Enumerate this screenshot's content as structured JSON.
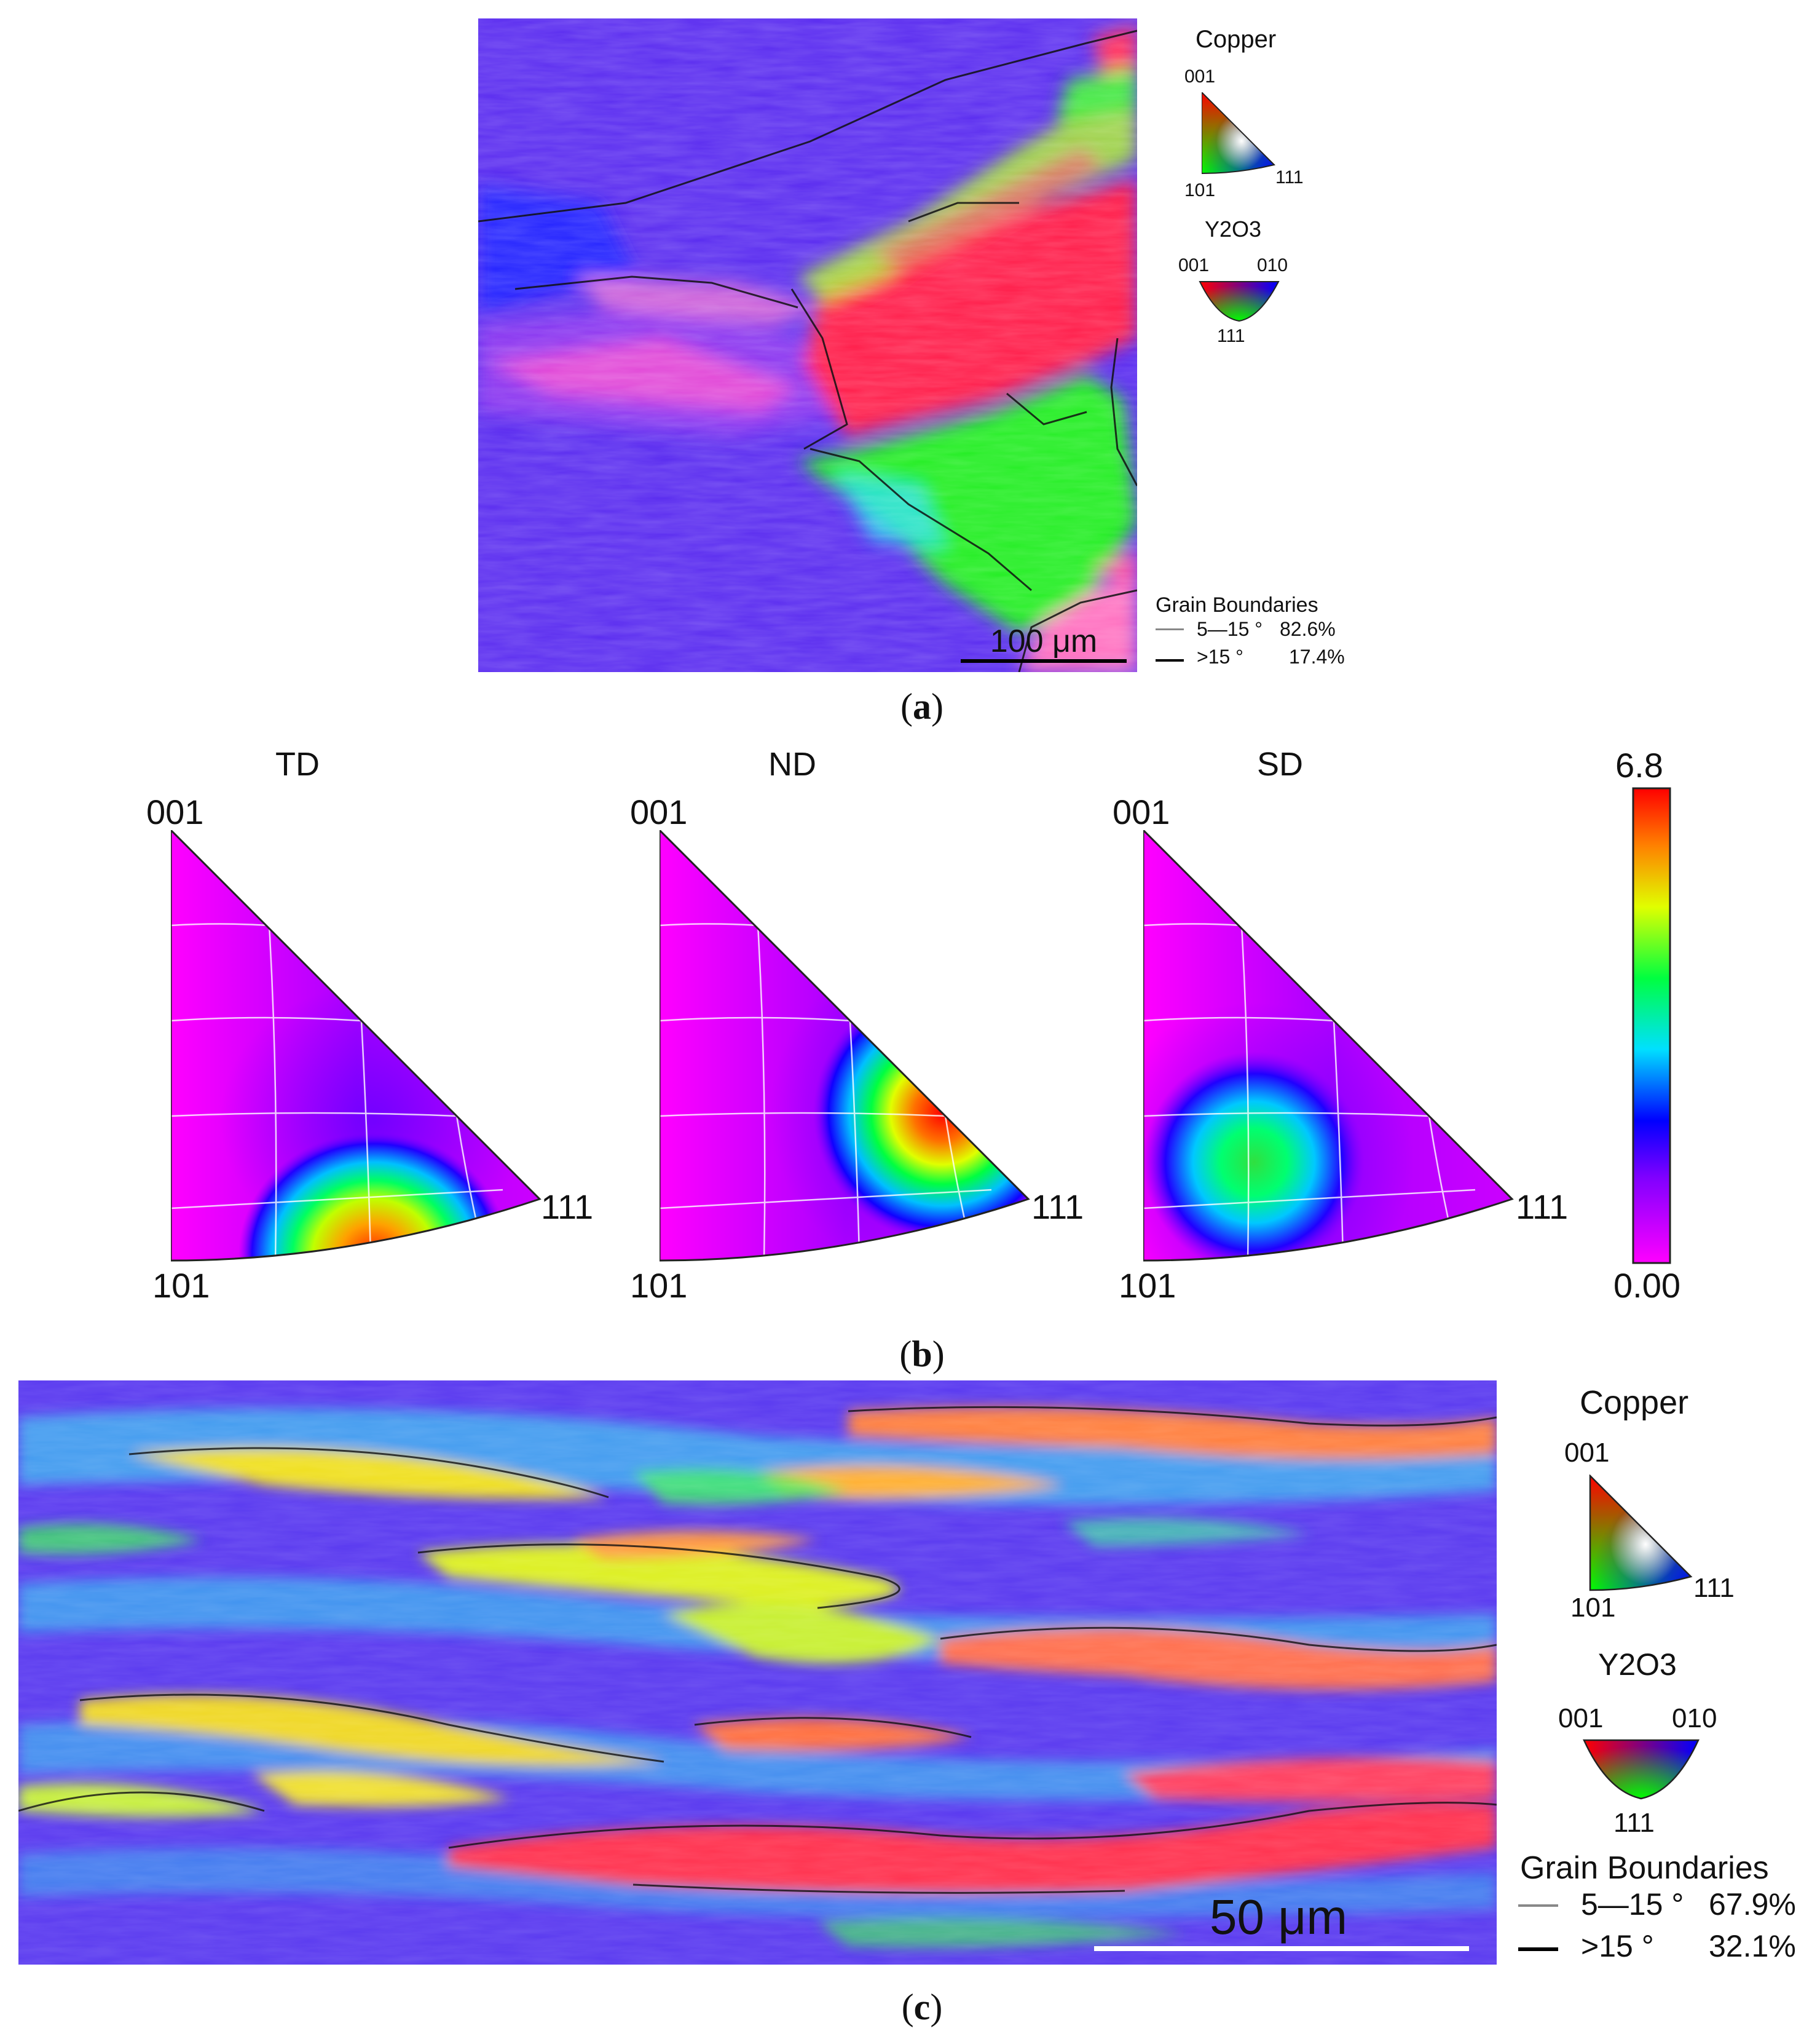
{
  "panel_a": {
    "caption_letter": "a",
    "scale_bar": "100 μm",
    "legend": {
      "phase1": "Copper",
      "phase1_corners": {
        "top": "001",
        "left": "101",
        "right": "111"
      },
      "phase2": "Y2O3",
      "phase2_corners": {
        "left": "001",
        "right": "010",
        "bottom": "111"
      },
      "gb_title": "Grain Boundaries",
      "gb_low_label": "5—15 °",
      "gb_low_pct": "82.6%",
      "gb_high_label": ">15 °",
      "gb_high_pct": "17.4%"
    }
  },
  "panel_b": {
    "caption_letter": "b",
    "triangles": [
      {
        "title": "TD",
        "top": "001",
        "bottom": "101",
        "right": "111"
      },
      {
        "title": "ND",
        "top": "001",
        "bottom": "101",
        "right": "111"
      },
      {
        "title": "SD",
        "top": "001",
        "bottom": "101",
        "right": "111"
      }
    ],
    "colorbar": {
      "max": "6.8",
      "min": "0.00"
    }
  },
  "panel_c": {
    "caption_letter": "c",
    "scale_bar": "50 μm",
    "legend": {
      "phase1": "Copper",
      "phase1_corners": {
        "top": "001",
        "left": "101",
        "right": "111"
      },
      "phase2": "Y2O3",
      "phase2_corners": {
        "left": "001",
        "right": "010",
        "bottom": "111"
      },
      "gb_title": "Grain Boundaries",
      "gb_low_label": "5—15 °",
      "gb_low_pct": "67.9%",
      "gb_high_label": ">15 °",
      "gb_high_pct": "32.1%"
    }
  },
  "colors": {
    "ipf_red": "#ff1a4a",
    "ipf_green": "#22ee22",
    "ipf_blue": "#2a20f0",
    "map_violet": "#5a2cf0",
    "density_low": "#ff00ff",
    "density_high": "#ff1000"
  }
}
